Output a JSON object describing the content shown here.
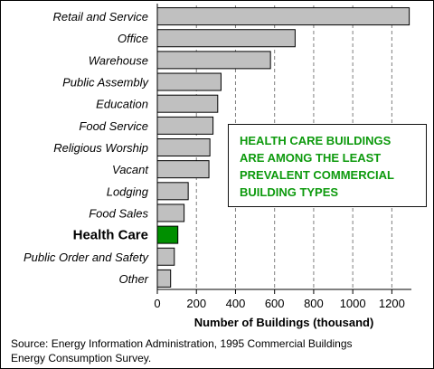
{
  "chart_data": {
    "type": "bar",
    "orientation": "horizontal",
    "categories": [
      "Retail and Service",
      "Office",
      "Warehouse",
      "Public Assembly",
      "Education",
      "Food Service",
      "Religious Worship",
      "Vacant",
      "Lodging",
      "Food Sales",
      "Health Care",
      "Public Order and Safety",
      "Other"
    ],
    "values": [
      1289,
      705,
      579,
      326,
      309,
      285,
      269,
      264,
      158,
      137,
      105,
      87,
      68
    ],
    "highlight_category": "Health Care",
    "xlabel": "Number of Buildings (thousand)",
    "ylabel": "",
    "xlim": [
      0,
      1300
    ],
    "xticks": [
      0,
      200,
      400,
      600,
      800,
      1000,
      1200
    ],
    "grid": "vertical dashed",
    "colors": {
      "bar": "#c0c0c0",
      "highlight": "#008f00",
      "grid": "#808080"
    },
    "annotation": [
      "HEALTH CARE BUILDINGS",
      "ARE AMONG THE LEAST",
      "PREVALENT COMMERCIAL",
      "BUILDING TYPES"
    ],
    "annotation_color": "#0d9a0d"
  },
  "source": [
    "Source:  Energy Information Administration, 1995 Commercial Buildings",
    "Energy Consumption Survey."
  ]
}
